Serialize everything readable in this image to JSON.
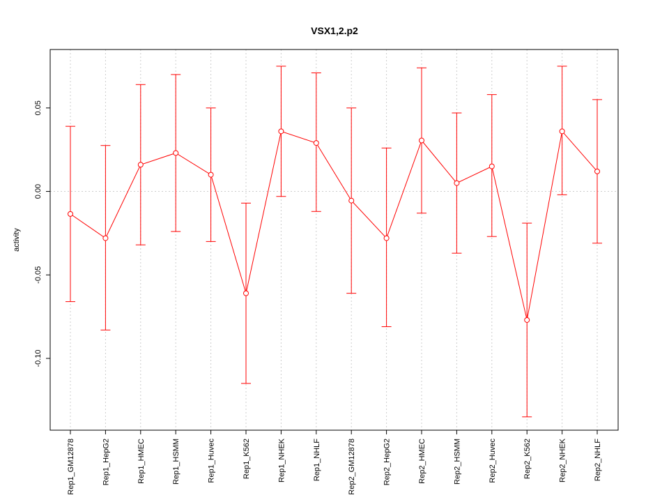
{
  "chart_data": {
    "type": "line",
    "title": "VSX1,2.p2",
    "xlabel": "",
    "ylabel": "activity",
    "ylim": [
      -0.143,
      0.085
    ],
    "yticks": [
      -0.1,
      -0.05,
      0.0,
      0.05
    ],
    "ytick_labels": [
      "-0.10",
      "-0.05",
      "0.00",
      "0.05"
    ],
    "reference_line": 0.0,
    "grid": "dotted vertical + zero line",
    "color": "#ff0000",
    "categories": [
      "Rep1_GM12878",
      "Rep1_HepG2",
      "Rep1_HMEC",
      "Rep1_HSMM",
      "Rep1_Huvec",
      "Rep1_K562",
      "Rep1_NHEK",
      "Rep1_NHLF",
      "Rep2_GM12878",
      "Rep2_HepG2",
      "Rep2_HMEC",
      "Rep2_HSMM",
      "Rep2_Huvec",
      "Rep2_K562",
      "Rep2_NHEK",
      "Rep2_NHLF"
    ],
    "values": [
      -0.0135,
      -0.028,
      0.016,
      0.023,
      0.01,
      -0.061,
      0.036,
      0.029,
      -0.0055,
      -0.028,
      0.0305,
      0.005,
      0.015,
      -0.077,
      0.036,
      0.012
    ],
    "upper": [
      0.039,
      0.0275,
      0.064,
      0.07,
      0.05,
      -0.007,
      0.075,
      0.071,
      0.05,
      0.026,
      0.074,
      0.047,
      0.058,
      -0.019,
      0.075,
      0.055
    ],
    "lower": [
      -0.066,
      -0.083,
      -0.032,
      -0.024,
      -0.03,
      -0.115,
      -0.003,
      -0.012,
      -0.061,
      -0.081,
      -0.013,
      -0.037,
      -0.027,
      -0.135,
      -0.002,
      -0.031
    ]
  }
}
